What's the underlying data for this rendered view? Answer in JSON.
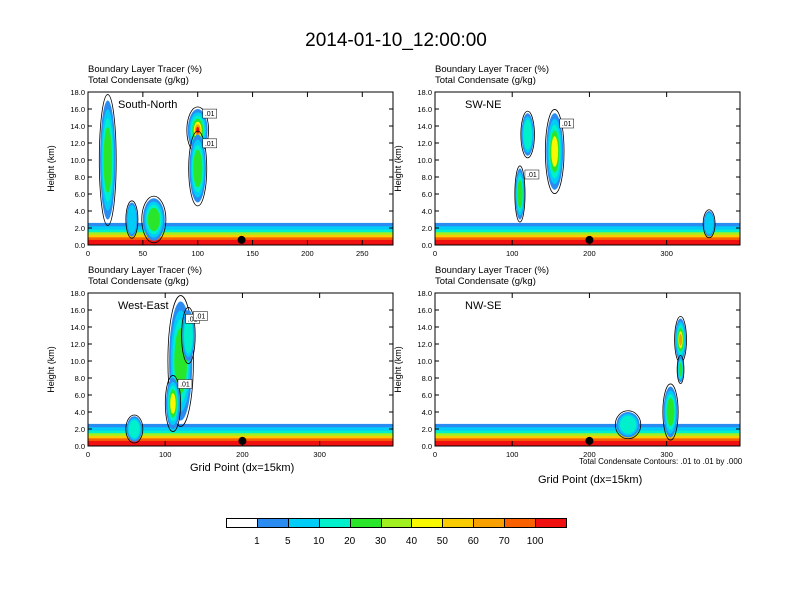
{
  "title": "2014-01-10_12:00:00",
  "colors": {
    "levels": [
      "#ffffff",
      "#2a8cf0",
      "#00cdf7",
      "#00f0cc",
      "#2ae62a",
      "#a0f020",
      "#f8f800",
      "#f8cc00",
      "#f8a000",
      "#f86000",
      "#f01010"
    ]
  },
  "chart_data": [
    {
      "type": "heatmap",
      "panel": "South-North",
      "label": "South-North",
      "title_lines": [
        "Boundary Layer Tracer   (%)",
        "Total Condensate   (g/kg)"
      ],
      "ylabel": "Height (km)",
      "xlabel": "",
      "xlim": [
        0,
        278
      ],
      "ylim": [
        0,
        18
      ],
      "xticks": [
        "0",
        "50",
        "100",
        "150",
        "200",
        "250"
      ],
      "xtick_values": [
        0,
        50,
        100,
        150,
        200,
        250
      ],
      "yticks": [
        "0.0",
        "2.0",
        "4.0",
        "6.0",
        "8.0",
        "10.0",
        "12.0",
        "14.0",
        "16.0",
        "18.0"
      ],
      "contour_labels": [
        ".01",
        ".01"
      ],
      "marker_x": 140,
      "blobs": [
        {
          "x": 100,
          "y": 13.5,
          "w": 18,
          "h": 5,
          "level": 10
        },
        {
          "x": 100,
          "y": 9,
          "w": 15,
          "h": 8,
          "level": 4
        },
        {
          "x": 18,
          "y": 10,
          "w": 14,
          "h": 14,
          "level": 5
        },
        {
          "x": 60,
          "y": 3,
          "w": 20,
          "h": 5,
          "level": 4
        },
        {
          "x": 40,
          "y": 3,
          "w": 10,
          "h": 4,
          "level": 2
        }
      ]
    },
    {
      "type": "heatmap",
      "panel": "SW-NE",
      "label": "SW-NE",
      "title_lines": [
        "Boundary Layer Tracer   (%)",
        "Total Condensate   (g/kg)"
      ],
      "ylabel": "Height (km)",
      "xlabel": "",
      "xlim": [
        0,
        395
      ],
      "ylim": [
        0,
        18
      ],
      "xticks": [
        "0",
        "100",
        "200",
        "300"
      ],
      "xtick_values": [
        0,
        100,
        200,
        300
      ],
      "yticks": [
        "0.0",
        "2.0",
        "4.0",
        "6.0",
        "8.0",
        "10.0",
        "12.0",
        "14.0",
        "16.0",
        "18.0"
      ],
      "contour_labels": [
        ".01",
        ".01"
      ],
      "marker_x": 200,
      "blobs": [
        {
          "x": 155,
          "y": 11,
          "w": 22,
          "h": 9,
          "level": 7
        },
        {
          "x": 110,
          "y": 6,
          "w": 12,
          "h": 6,
          "level": 4
        },
        {
          "x": 120,
          "y": 13,
          "w": 16,
          "h": 5,
          "level": 3
        },
        {
          "x": 355,
          "y": 2.5,
          "w": 14,
          "h": 3,
          "level": 2
        }
      ]
    },
    {
      "type": "heatmap",
      "panel": "West-East",
      "label": "West-East",
      "title_lines": [
        "Boundary Layer Tracer   (%)",
        "Total Condensate   (g/kg)"
      ],
      "ylabel": "Height (km)",
      "xlabel": "Grid Point (dx=15km)",
      "xlim": [
        0,
        395
      ],
      "ylim": [
        0,
        18
      ],
      "xticks": [
        "0",
        "100",
        "200",
        "300"
      ],
      "xtick_values": [
        0,
        100,
        200,
        300
      ],
      "yticks": [
        "0.0",
        "2.0",
        "4.0",
        "6.0",
        "8.0",
        "10.0",
        "12.0",
        "14.0",
        "16.0",
        "18.0"
      ],
      "contour_labels": [
        ".01",
        ".01",
        ".01"
      ],
      "marker_x": 200,
      "blobs": [
        {
          "x": 120,
          "y": 10,
          "w": 30,
          "h": 14,
          "level": 5
        },
        {
          "x": 110,
          "y": 5,
          "w": 18,
          "h": 6,
          "level": 7
        },
        {
          "x": 130,
          "y": 13,
          "w": 16,
          "h": 6,
          "level": 3
        },
        {
          "x": 60,
          "y": 2,
          "w": 20,
          "h": 3,
          "level": 3
        }
      ]
    },
    {
      "type": "heatmap",
      "panel": "NW-SE",
      "label": "NW-SE",
      "title_lines": [
        "Boundary Layer Tracer   (%)",
        "Total Condensate   (g/kg)"
      ],
      "ylabel": "Height (km)",
      "xlabel": "Grid Point (dx=15km)",
      "xlim": [
        0,
        395
      ],
      "ylim": [
        0,
        18
      ],
      "xticks": [
        "0",
        "100",
        "200",
        "300"
      ],
      "xtick_values": [
        0,
        100,
        200,
        300
      ],
      "yticks": [
        "0.0",
        "2.0",
        "4.0",
        "6.0",
        "8.0",
        "10.0",
        "12.0",
        "14.0",
        "16.0",
        "18.0"
      ],
      "contour_labels": [],
      "marker_x": 200,
      "blobs": [
        {
          "x": 318,
          "y": 12.5,
          "w": 14,
          "h": 5,
          "level": 8
        },
        {
          "x": 318,
          "y": 9,
          "w": 8,
          "h": 3,
          "level": 4
        },
        {
          "x": 305,
          "y": 4,
          "w": 18,
          "h": 6,
          "level": 4
        },
        {
          "x": 250,
          "y": 2.5,
          "w": 30,
          "h": 3,
          "level": 3
        }
      ]
    }
  ],
  "footnote": "Total Condensate Contours: .01 to .01 by .000",
  "colorbar_labels": [
    "1",
    "5",
    "10",
    "20",
    "30",
    "40",
    "50",
    "60",
    "70",
    "100"
  ]
}
